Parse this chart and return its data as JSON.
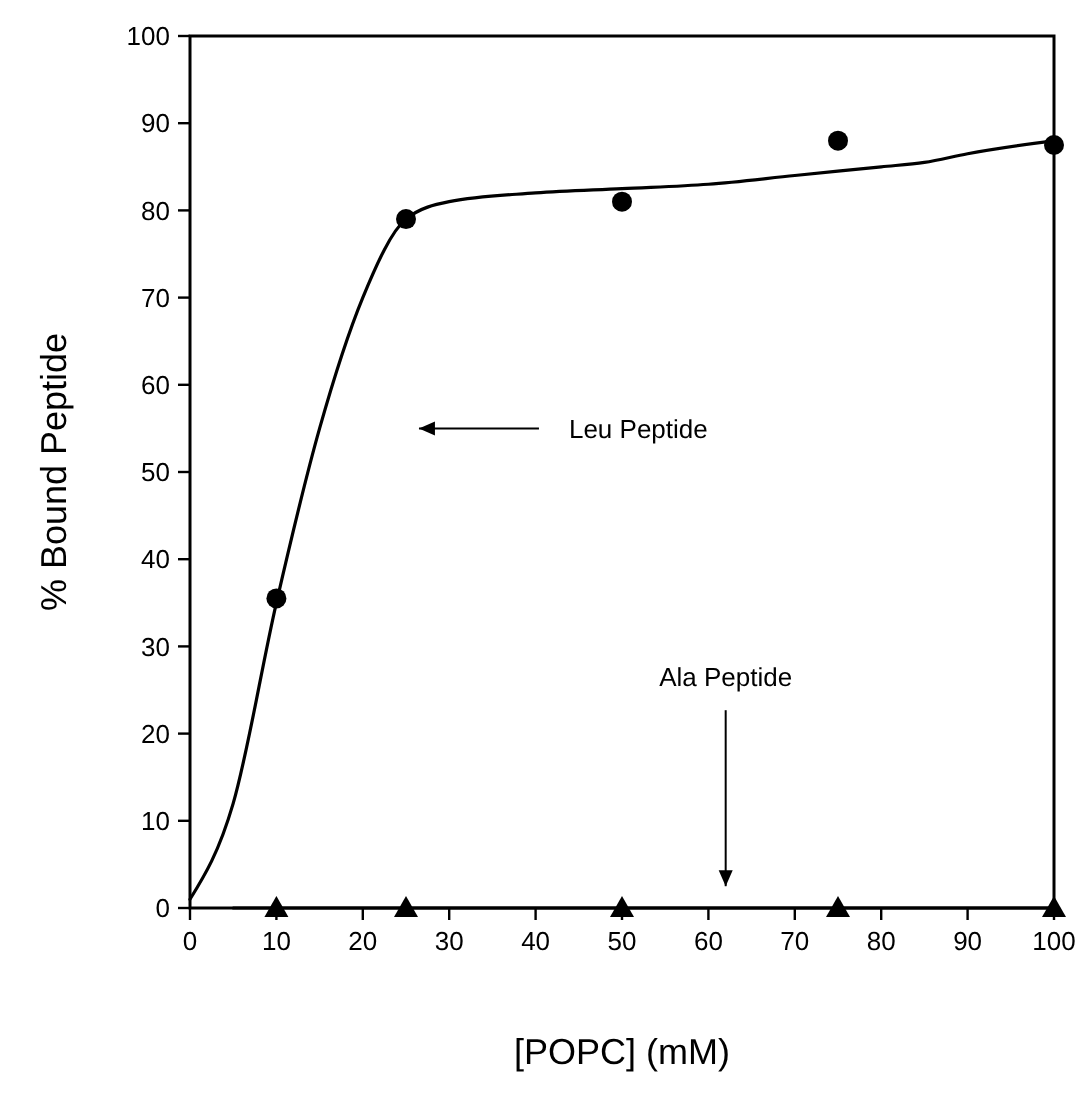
{
  "chart_data": {
    "type": "scatter",
    "xlabel": "[POPC]  (mM)",
    "ylabel": "% Bound Peptide",
    "xlim": [
      0,
      100
    ],
    "ylim": [
      0,
      100
    ],
    "xticks": [
      0,
      10,
      20,
      30,
      40,
      50,
      60,
      70,
      80,
      90,
      100
    ],
    "yticks": [
      0,
      10,
      20,
      30,
      40,
      50,
      60,
      70,
      80,
      90,
      100
    ],
    "grid": false,
    "series": [
      {
        "type": "line",
        "color": "#000000",
        "marker": "none",
        "x": [
          0,
          5,
          10,
          15,
          20,
          25,
          30,
          40,
          50,
          60,
          70,
          80,
          85,
          90,
          100
        ],
        "values": [
          1,
          12,
          35,
          55,
          70,
          79,
          81,
          82,
          82.5,
          83,
          84,
          85,
          85.5,
          86.5,
          88
        ]
      },
      {
        "type": "line",
        "color": "#000000",
        "marker": "none",
        "x": [
          5,
          100
        ],
        "values": [
          0,
          0
        ]
      },
      {
        "color": "#000000",
        "marker": "circle",
        "x": [
          10,
          25,
          50,
          75,
          100
        ],
        "values": [
          35.5,
          79,
          81,
          88,
          87.5
        ]
      },
      {
        "color": "#000000",
        "marker": "triangle",
        "x": [
          10,
          25,
          50,
          75,
          100
        ],
        "values": [
          0,
          0,
          0,
          0,
          0
        ]
      }
    ],
    "annotations": [
      "Leu Peptide",
      "Ala Peptide"
    ]
  }
}
